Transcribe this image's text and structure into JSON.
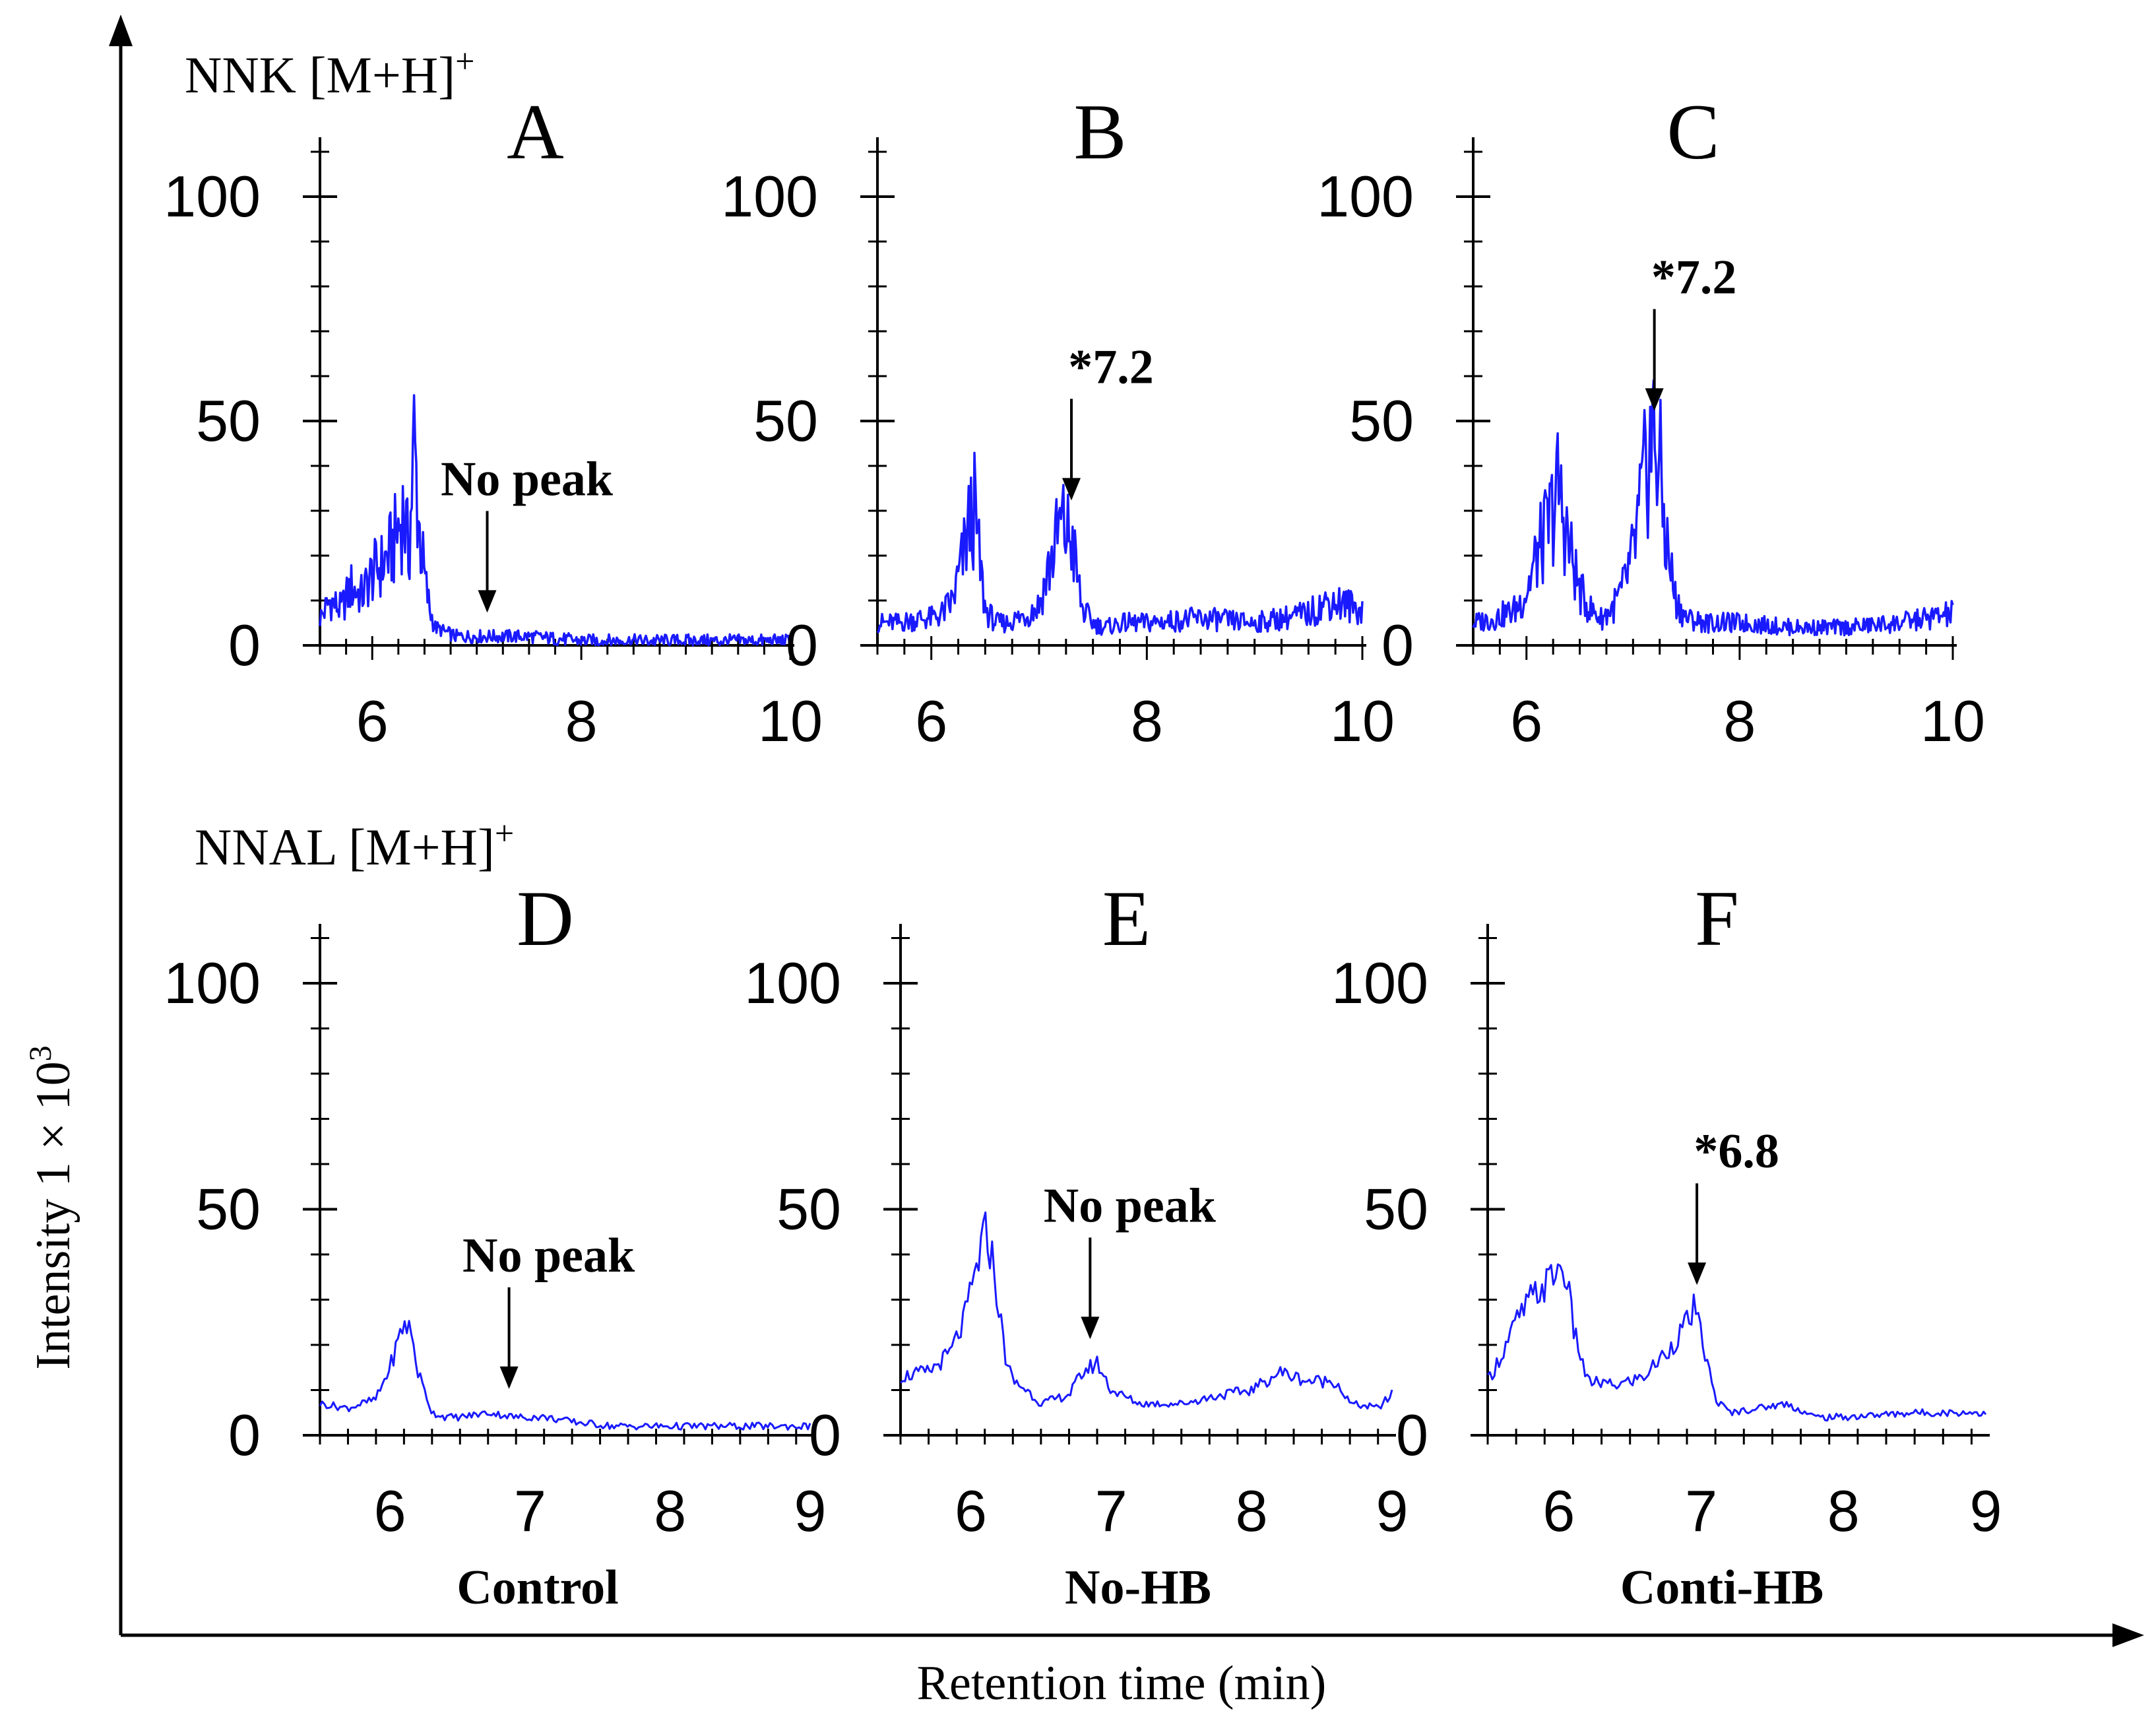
{
  "chart_data": {
    "type": "line",
    "colors": {
      "trace": "#1a1aff",
      "axis": "#000000"
    },
    "outer_axes": {
      "xlabel": "Retention time (min)",
      "ylabel": "Intensity 1 × 10",
      "ylabel_superscript": "3"
    },
    "rows": [
      {
        "title": "NNK [M+H]",
        "title_superscript": "+"
      },
      {
        "title": "NNAL [M+H]",
        "title_superscript": "+"
      }
    ],
    "group_labels": [
      "Control",
      "No-HB",
      "Conti-HB"
    ],
    "panels": [
      {
        "letter": "A",
        "row": 0,
        "col": 0,
        "xlim": [
          5.5,
          10
        ],
        "ylim": [
          0,
          100
        ],
        "xticks": [
          6,
          8,
          10
        ],
        "yticks": [
          0,
          50,
          100
        ],
        "annotation": {
          "text": "No peak",
          "x": 7.1
        },
        "x": [
          5.5,
          5.6,
          5.7,
          5.8,
          5.9,
          6.0,
          6.1,
          6.2,
          6.3,
          6.35,
          6.4,
          6.45,
          6.5,
          6.55,
          6.6,
          6.7,
          6.8,
          7.0,
          7.2,
          7.5,
          8.0,
          8.5,
          9.0,
          9.5,
          10.0
        ],
        "y": [
          6,
          10,
          8,
          13,
          11,
          16,
          18,
          22,
          30,
          20,
          45,
          26,
          15,
          8,
          4,
          3,
          2,
          2,
          2,
          2,
          1,
          1,
          1,
          1,
          1
        ]
      },
      {
        "letter": "B",
        "row": 0,
        "col": 1,
        "xlim": [
          5.5,
          10
        ],
        "ylim": [
          0,
          100
        ],
        "xticks": [
          6,
          8,
          10
        ],
        "yticks": [
          0,
          50,
          100
        ],
        "annotation": {
          "text": "*7.2",
          "x": 7.3
        },
        "x": [
          5.5,
          5.7,
          5.9,
          6.0,
          6.1,
          6.2,
          6.3,
          6.35,
          6.4,
          6.45,
          6.5,
          6.6,
          6.7,
          6.8,
          6.9,
          7.0,
          7.1,
          7.2,
          7.3,
          7.35,
          7.4,
          7.5,
          7.6,
          7.8,
          8.0,
          8.5,
          9.0,
          9.5,
          9.7,
          10.0
        ],
        "y": [
          5,
          5,
          6,
          6,
          7,
          10,
          20,
          27,
          30,
          18,
          8,
          5,
          5,
          6,
          7,
          9,
          18,
          27,
          24,
          16,
          8,
          5,
          4,
          5,
          5,
          6,
          5,
          7,
          10,
          8
        ]
      },
      {
        "letter": "C",
        "row": 0,
        "col": 2,
        "xlim": [
          5.5,
          10
        ],
        "ylim": [
          0,
          100
        ],
        "xticks": [
          6,
          8,
          10
        ],
        "yticks": [
          0,
          50,
          100
        ],
        "annotation": {
          "text": "*7.2",
          "x": 7.2
        },
        "x": [
          5.5,
          5.7,
          5.9,
          6.0,
          6.1,
          6.2,
          6.3,
          6.4,
          6.5,
          6.6,
          6.7,
          6.8,
          6.9,
          7.0,
          7.1,
          7.15,
          7.2,
          7.25,
          7.3,
          7.4,
          7.5,
          7.7,
          8.0,
          8.5,
          9.0,
          9.5,
          10.0
        ],
        "y": [
          5,
          6,
          8,
          12,
          20,
          26,
          35,
          22,
          12,
          8,
          6,
          8,
          12,
          20,
          35,
          44,
          47,
          40,
          25,
          10,
          6,
          5,
          5,
          4,
          4,
          5,
          7
        ]
      },
      {
        "letter": "D",
        "row": 1,
        "col": 0,
        "xlim": [
          5.5,
          9
        ],
        "ylim": [
          0,
          100
        ],
        "xticks": [
          6,
          7,
          8,
          9
        ],
        "yticks": [
          0,
          50,
          100
        ],
        "annotation": {
          "text": "No peak",
          "x": 6.85
        },
        "x": [
          5.5,
          5.7,
          5.9,
          6.0,
          6.05,
          6.1,
          6.15,
          6.2,
          6.3,
          6.4,
          6.5,
          6.7,
          6.9,
          7.1,
          7.3,
          7.6,
          8.0,
          8.5,
          9.0
        ],
        "y": [
          7,
          6,
          8,
          15,
          20,
          25,
          23,
          14,
          5,
          4,
          4,
          5,
          4,
          4,
          3,
          2,
          2,
          2,
          2
        ]
      },
      {
        "letter": "E",
        "row": 1,
        "col": 1,
        "xlim": [
          5.5,
          9
        ],
        "ylim": [
          0,
          100
        ],
        "xticks": [
          6,
          7,
          8,
          9
        ],
        "yticks": [
          0,
          50,
          100
        ],
        "annotation": {
          "text": "No peak",
          "x": 6.85
        },
        "x": [
          5.5,
          5.7,
          5.85,
          5.95,
          6.05,
          6.1,
          6.15,
          6.2,
          6.25,
          6.3,
          6.4,
          6.5,
          6.7,
          6.8,
          6.9,
          7.0,
          7.2,
          7.5,
          7.8,
          8.0,
          8.2,
          8.4,
          8.6,
          8.7,
          8.9,
          9.0
        ],
        "y": [
          13,
          14,
          18,
          25,
          38,
          45,
          40,
          28,
          17,
          12,
          10,
          7,
          9,
          14,
          16,
          10,
          7,
          7,
          9,
          10,
          14,
          12,
          12,
          7,
          6,
          9
        ]
      },
      {
        "letter": "F",
        "row": 1,
        "col": 2,
        "xlim": [
          5.5,
          9
        ],
        "ylim": [
          0,
          100
        ],
        "xticks": [
          6,
          7,
          8,
          9
        ],
        "yticks": [
          0,
          50,
          100
        ],
        "annotation": {
          "text": "*6.8",
          "x": 6.97
        },
        "x": [
          5.5,
          5.6,
          5.7,
          5.8,
          5.9,
          6.0,
          6.05,
          6.1,
          6.2,
          6.4,
          6.6,
          6.8,
          6.9,
          6.95,
          7.0,
          7.05,
          7.1,
          7.2,
          7.4,
          7.6,
          7.8,
          8.0,
          8.5,
          9.0
        ],
        "y": [
          12,
          18,
          25,
          30,
          33,
          37,
          36,
          24,
          12,
          11,
          13,
          20,
          25,
          28,
          22,
          15,
          8,
          5,
          6,
          7,
          4,
          4,
          5,
          5
        ]
      }
    ]
  }
}
